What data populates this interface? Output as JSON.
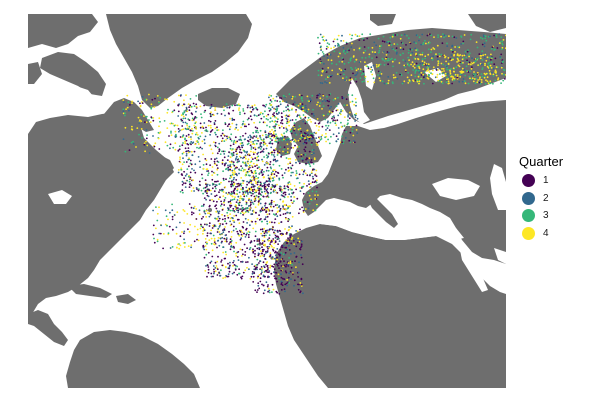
{
  "colors": {
    "background": "#ffffff",
    "land": "#6e6e6e",
    "sea": "#ffffff"
  },
  "legend": {
    "title": "Quarter",
    "items": [
      {
        "label": "1",
        "color": "#440154"
      },
      {
        "label": "2",
        "color": "#31688e"
      },
      {
        "label": "3",
        "color": "#35b779"
      },
      {
        "label": "4",
        "color": "#fde725"
      }
    ]
  }
}
